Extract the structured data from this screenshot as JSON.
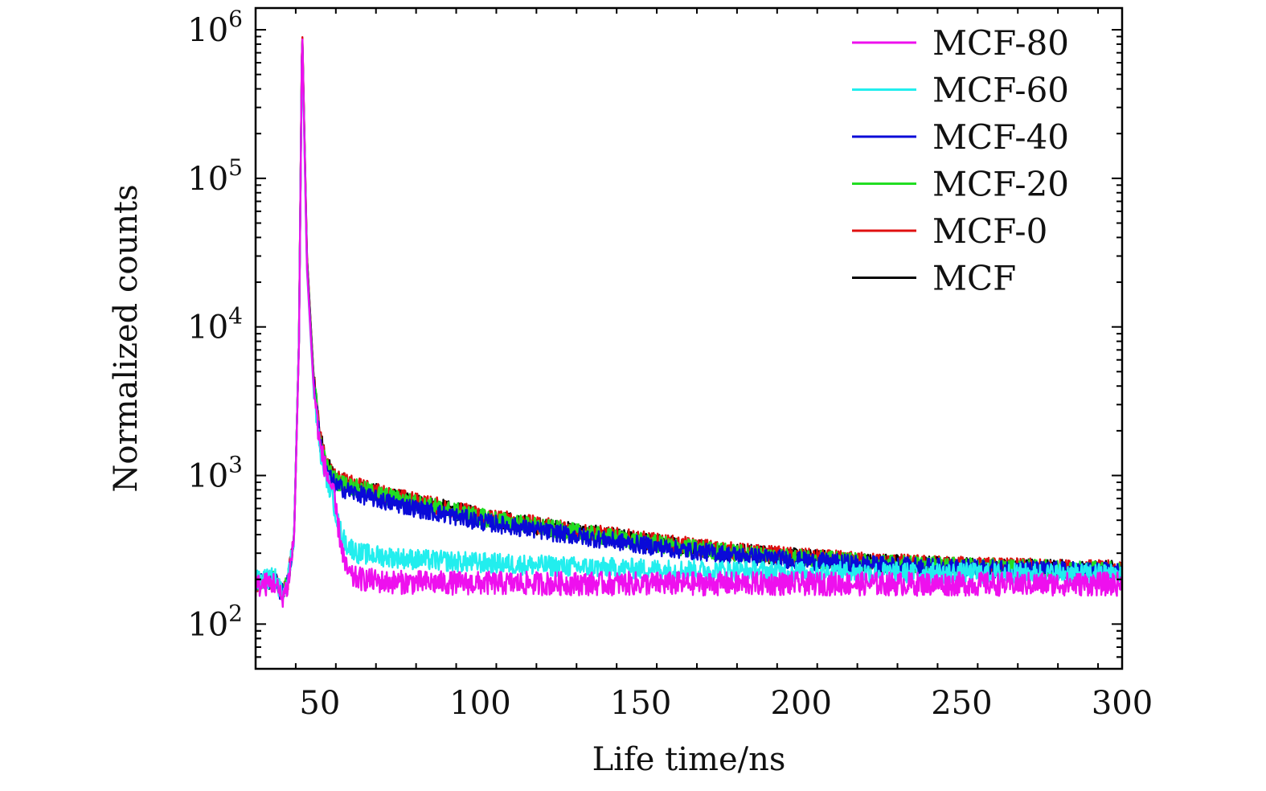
{
  "chart_data": {
    "type": "line",
    "title": "",
    "xlabel": "Life time/ns",
    "ylabel": "Normalized counts",
    "xlim": [
      30,
      300
    ],
    "ylim": [
      50,
      1400000
    ],
    "yscale": "log",
    "grid": false,
    "legend_position": "top-right",
    "x_ticks": [
      {
        "value": 50,
        "label": "50"
      },
      {
        "value": 100,
        "label": "100"
      },
      {
        "value": 150,
        "label": "150"
      },
      {
        "value": 200,
        "label": "200"
      },
      {
        "value": 250,
        "label": "250"
      },
      {
        "value": 300,
        "label": "300"
      }
    ],
    "y_ticks": [
      {
        "value": 100,
        "base": "10",
        "exp": "2"
      },
      {
        "value": 1000,
        "base": "10",
        "exp": "3"
      },
      {
        "value": 10000,
        "base": "10",
        "exp": "4"
      },
      {
        "value": 100000,
        "base": "10",
        "exp": "5"
      },
      {
        "value": 1000000,
        "base": "10",
        "exp": "6"
      }
    ],
    "series": [
      {
        "name": "MCF",
        "color": "#000000",
        "noise": 0.06,
        "points": [
          [
            30,
            190
          ],
          [
            36,
            200
          ],
          [
            38,
            160
          ],
          [
            40,
            190
          ],
          [
            42,
            400
          ],
          [
            43.5,
            8000
          ],
          [
            44.5,
            1050000
          ],
          [
            46,
            30000
          ],
          [
            48,
            5000
          ],
          [
            50,
            1900
          ],
          [
            52,
            1200
          ],
          [
            55,
            950
          ],
          [
            60,
            860
          ],
          [
            70,
            740
          ],
          [
            80,
            660
          ],
          [
            90,
            590
          ],
          [
            100,
            530
          ],
          [
            120,
            450
          ],
          [
            140,
            390
          ],
          [
            160,
            340
          ],
          [
            180,
            305
          ],
          [
            200,
            280
          ],
          [
            220,
            262
          ],
          [
            250,
            245
          ],
          [
            280,
            236
          ],
          [
            300,
            232
          ]
        ]
      },
      {
        "name": "MCF-0",
        "color": "#e01010",
        "noise": 0.06,
        "points": [
          [
            30,
            190
          ],
          [
            36,
            200
          ],
          [
            38,
            160
          ],
          [
            40,
            190
          ],
          [
            42,
            400
          ],
          [
            43.5,
            8000
          ],
          [
            44.5,
            1080000
          ],
          [
            46,
            30000
          ],
          [
            48,
            5000
          ],
          [
            50,
            1900
          ],
          [
            52,
            1200
          ],
          [
            55,
            950
          ],
          [
            60,
            870
          ],
          [
            70,
            750
          ],
          [
            80,
            670
          ],
          [
            90,
            600
          ],
          [
            100,
            540
          ],
          [
            120,
            455
          ],
          [
            140,
            395
          ],
          [
            160,
            345
          ],
          [
            180,
            308
          ],
          [
            200,
            283
          ],
          [
            220,
            265
          ],
          [
            250,
            248
          ],
          [
            280,
            238
          ],
          [
            300,
            234
          ]
        ]
      },
      {
        "name": "MCF-20",
        "color": "#22dd22",
        "noise": 0.06,
        "points": [
          [
            30,
            190
          ],
          [
            36,
            200
          ],
          [
            38,
            160
          ],
          [
            40,
            190
          ],
          [
            42,
            400
          ],
          [
            43.5,
            8000
          ],
          [
            44.5,
            1040000
          ],
          [
            46,
            28000
          ],
          [
            48,
            4800
          ],
          [
            50,
            1800
          ],
          [
            52,
            1150
          ],
          [
            55,
            920
          ],
          [
            60,
            840
          ],
          [
            70,
            730
          ],
          [
            80,
            650
          ],
          [
            90,
            585
          ],
          [
            100,
            525
          ],
          [
            120,
            445
          ],
          [
            140,
            385
          ],
          [
            160,
            335
          ],
          [
            180,
            300
          ],
          [
            200,
            278
          ],
          [
            220,
            260
          ],
          [
            250,
            243
          ],
          [
            280,
            235
          ],
          [
            300,
            231
          ]
        ]
      },
      {
        "name": "MCF-40",
        "color": "#0a0ad8",
        "noise": 0.06,
        "points": [
          [
            30,
            190
          ],
          [
            36,
            200
          ],
          [
            38,
            160
          ],
          [
            40,
            190
          ],
          [
            42,
            400
          ],
          [
            43.5,
            8000
          ],
          [
            44.5,
            1000000
          ],
          [
            46,
            27000
          ],
          [
            48,
            4500
          ],
          [
            50,
            1700
          ],
          [
            52,
            1050
          ],
          [
            55,
            850
          ],
          [
            60,
            770
          ],
          [
            70,
            670
          ],
          [
            80,
            600
          ],
          [
            90,
            540
          ],
          [
            100,
            490
          ],
          [
            120,
            420
          ],
          [
            140,
            365
          ],
          [
            160,
            320
          ],
          [
            180,
            290
          ],
          [
            200,
            268
          ],
          [
            220,
            252
          ],
          [
            250,
            238
          ],
          [
            280,
            230
          ],
          [
            300,
            226
          ]
        ]
      },
      {
        "name": "MCF-60",
        "color": "#22eeee",
        "noise": 0.07,
        "points": [
          [
            30,
            195
          ],
          [
            36,
            205
          ],
          [
            38,
            165
          ],
          [
            40,
            195
          ],
          [
            42,
            400
          ],
          [
            43.5,
            8000
          ],
          [
            44.5,
            900000
          ],
          [
            46,
            24000
          ],
          [
            48,
            4000
          ],
          [
            50,
            1500
          ],
          [
            52,
            1000
          ],
          [
            54,
            700
          ],
          [
            56,
            450
          ],
          [
            58,
            350
          ],
          [
            62,
            300
          ],
          [
            70,
            285
          ],
          [
            80,
            272
          ],
          [
            100,
            258
          ],
          [
            130,
            242
          ],
          [
            160,
            232
          ],
          [
            200,
            225
          ],
          [
            250,
            220
          ],
          [
            300,
            218
          ]
        ]
      },
      {
        "name": "MCF-80",
        "color": "#ee10ee",
        "noise": 0.08,
        "points": [
          [
            30,
            180
          ],
          [
            36,
            190
          ],
          [
            38,
            150
          ],
          [
            40,
            180
          ],
          [
            42,
            380
          ],
          [
            43.5,
            7500
          ],
          [
            44.5,
            1050000
          ],
          [
            46,
            25000
          ],
          [
            48,
            4200
          ],
          [
            50,
            1600
          ],
          [
            52,
            1050
          ],
          [
            54,
            800
          ],
          [
            56,
            420
          ],
          [
            58,
            240
          ],
          [
            60,
            205
          ],
          [
            70,
            192
          ],
          [
            100,
            188
          ],
          [
            150,
            187
          ],
          [
            200,
            187
          ],
          [
            250,
            186
          ],
          [
            300,
            186
          ]
        ]
      }
    ],
    "legend_order": [
      "MCF-80",
      "MCF-60",
      "MCF-40",
      "MCF-20",
      "MCF-0",
      "MCF"
    ]
  }
}
